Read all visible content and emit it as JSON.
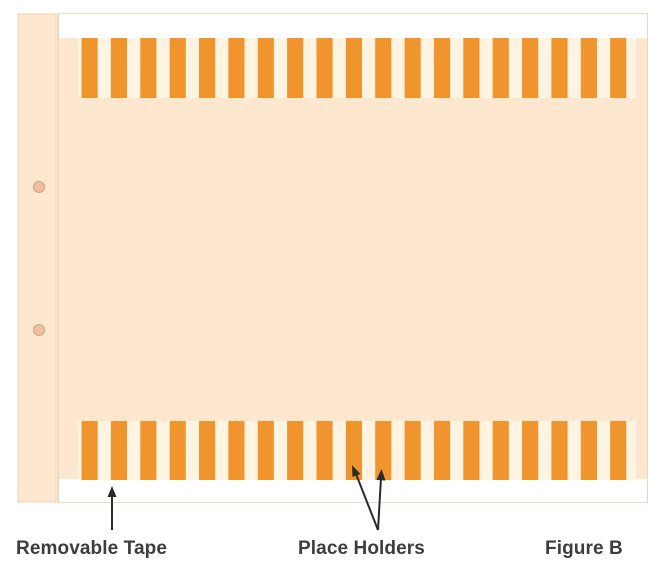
{
  "colors": {
    "binding_strip": "#fde8cf",
    "binding_edge": "#eed3b3",
    "page": "#fde8cf",
    "page_edge": "#e9cfae",
    "stripe": "#f0952e",
    "stripe_gap": "#fff3e2",
    "hole": "#f0c09e",
    "hole_edge": "#d8a27e",
    "arrow": "#2b2b2b",
    "label": "#3d3d3d"
  },
  "top_band": {
    "stripe_count": 19
  },
  "bottom_band": {
    "stripe_count": 19
  },
  "binding_holes": 2,
  "labels": {
    "removable_tape": "Removable Tape",
    "place_holders": "Place Holders",
    "figure": "Figure B"
  }
}
